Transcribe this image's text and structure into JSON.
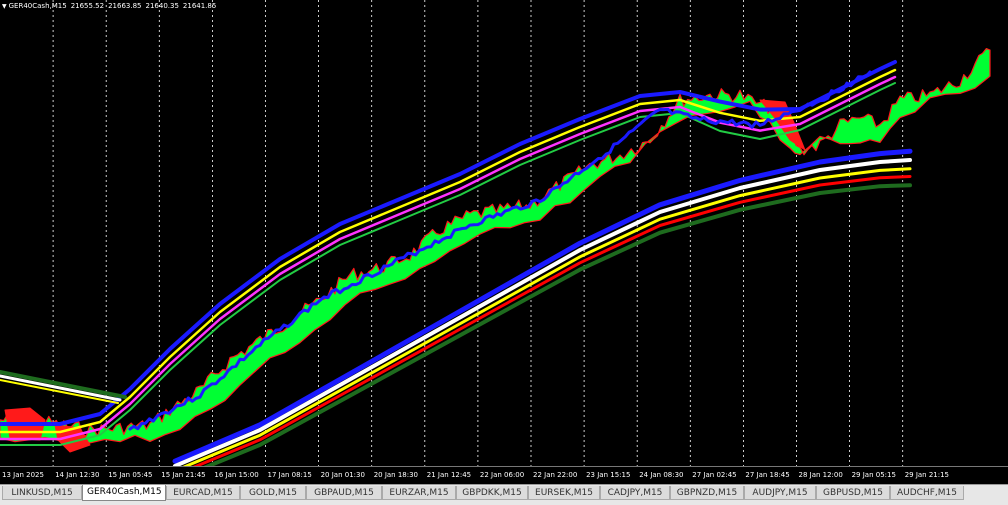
{
  "header": {
    "symbol": "GER40Cash,M15",
    "open": "21655.52",
    "high": "21663.85",
    "low": "21640.35",
    "close": "21641.85"
  },
  "time_axis": {
    "labels": [
      "13 Jan 2025",
      "14 Jan 12:30",
      "15 Jan 05:45",
      "15 Jan 21:45",
      "16 Jan 15:00",
      "17 Jan 08:15",
      "20 Jan 01:30",
      "20 Jan 18:30",
      "21 Jan 12:45",
      "22 Jan 06:00",
      "22 Jan 22:00",
      "23 Jan 15:15",
      "24 Jan 08:30",
      "27 Jan 02:45",
      "27 Jan 18:45",
      "28 Jan 12:00",
      "29 Jan 05:15",
      "29 Jan 21:15"
    ]
  },
  "tabs": [
    {
      "label": "LINKUSD,M15",
      "active": false
    },
    {
      "label": "GER40Cash,M15",
      "active": true
    },
    {
      "label": "EURCAD,M15",
      "active": false
    },
    {
      "label": "GOLD,M15",
      "active": false
    },
    {
      "label": "GBPAUD,M15",
      "active": false
    },
    {
      "label": "EURZAR,M15",
      "active": false
    },
    {
      "label": "GBPDKK,M15",
      "active": false
    },
    {
      "label": "EURSEK,M15",
      "active": false
    },
    {
      "label": "CADJPY,M15",
      "active": false
    },
    {
      "label": "GBPNZD,M15",
      "active": false
    },
    {
      "label": "AUDJPY,M15",
      "active": false
    },
    {
      "label": "GBPUSD,M15",
      "active": false
    },
    {
      "label": "AUDCHF,M15",
      "active": false
    }
  ],
  "colors": {
    "background": "#000000",
    "grid": "#ffffff",
    "cloud_up": "#00ff33",
    "cloud_down": "#ff1a1a",
    "ma_blue": "#1a1aff",
    "ma_yellow": "#ffff00",
    "ma_magenta": "#ff33ff",
    "ma_green": "#22cc44",
    "ma_white": "#ffffff",
    "ma_red": "#ff0000",
    "ma_darkgreen": "#1e6b1e"
  }
}
